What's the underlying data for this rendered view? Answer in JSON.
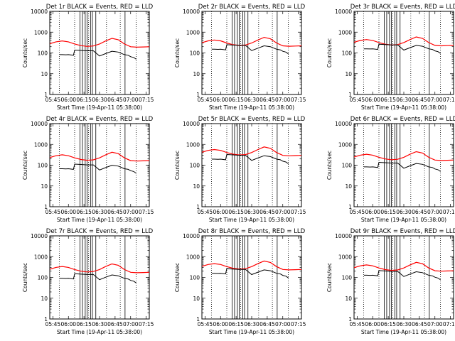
{
  "figure": {
    "ylabel": "Counts/sec",
    "xlabel": "Start Time (19-Apr-11 05:38:00)"
  },
  "chart_data": [
    {
      "type": "line",
      "title": "Det 1r  BLACK = Events, RED = LLD",
      "event_scale": 0.55,
      "lld_scale": 0.9
    },
    {
      "type": "line",
      "title": "Det 2r  BLACK = Events, RED = LLD",
      "event_scale": 1.0,
      "lld_scale": 1.0
    },
    {
      "type": "line",
      "title": "Det 3r  BLACK = Events, RED = LLD",
      "event_scale": 1.05,
      "lld_scale": 1.05
    },
    {
      "type": "line",
      "title": "Det 4r  BLACK = Events, RED = LLD",
      "event_scale": 0.45,
      "lld_scale": 0.75
    },
    {
      "type": "line",
      "title": "Det 5r  BLACK = Events, RED = LLD",
      "event_scale": 1.3,
      "lld_scale": 1.35
    },
    {
      "type": "line",
      "title": "Det 6r  BLACK = Events, RED = LLD",
      "event_scale": 0.55,
      "lld_scale": 0.8
    },
    {
      "type": "line",
      "title": "Det 7r  BLACK = Events, RED = LLD",
      "event_scale": 0.6,
      "lld_scale": 0.8
    },
    {
      "type": "line",
      "title": "Det 8r  BLACK = Events, RED = LLD",
      "event_scale": 1.05,
      "lld_scale": 1.1
    },
    {
      "type": "line",
      "title": "Det 9r  BLACK = Events, RED = LLD",
      "event_scale": 0.85,
      "lld_scale": 0.95
    }
  ],
  "shared": {
    "xlim": [
      5.7,
      7.3
    ],
    "ylim": [
      1,
      10000
    ],
    "yscale": "log",
    "x_ticks": [
      5.75,
      6.0,
      6.25,
      6.5,
      6.75,
      7.0,
      7.25
    ],
    "x_tick_labels": [
      "05:45",
      "06:00",
      "06:15",
      "06:30",
      "06:45",
      "07:00",
      "07:15"
    ],
    "y_ticks": [
      1,
      10,
      100,
      1000,
      10000
    ],
    "y_tick_labels": [
      "1",
      "10",
      "100",
      "1000",
      "10000"
    ],
    "dotted_lines": [
      5.853,
      6.1,
      6.322,
      6.612,
      6.833,
      7.09
    ],
    "solid_lines": [
      6.185,
      6.225,
      6.27,
      6.3,
      6.355,
      6.385,
      6.44,
      6.91
    ],
    "lld_profile": {
      "x": [
        5.7,
        5.8,
        5.9,
        6.0,
        6.1,
        6.2,
        6.3,
        6.4,
        6.5,
        6.6,
        6.7,
        6.8,
        6.9,
        7.0,
        7.1,
        7.2,
        7.3
      ],
      "y": [
        310,
        380,
        420,
        380,
        300,
        250,
        230,
        240,
        300,
        420,
        560,
        480,
        300,
        220,
        210,
        215,
        220
      ]
    },
    "event_profile": {
      "x": [
        5.86,
        5.9,
        5.96,
        6.0,
        6.08,
        6.1,
        6.2,
        6.3,
        6.4,
        6.5,
        6.6,
        6.7,
        6.8,
        6.9,
        6.96,
        7.0,
        7.05,
        7.09
      ],
      "y": [
        150,
        150,
        148,
        150,
        140,
        250,
        240,
        230,
        230,
        130,
        170,
        220,
        200,
        150,
        140,
        120,
        110,
        90
      ]
    },
    "event_colors": {
      "lld": "#ff0000",
      "events": "#000000"
    }
  }
}
